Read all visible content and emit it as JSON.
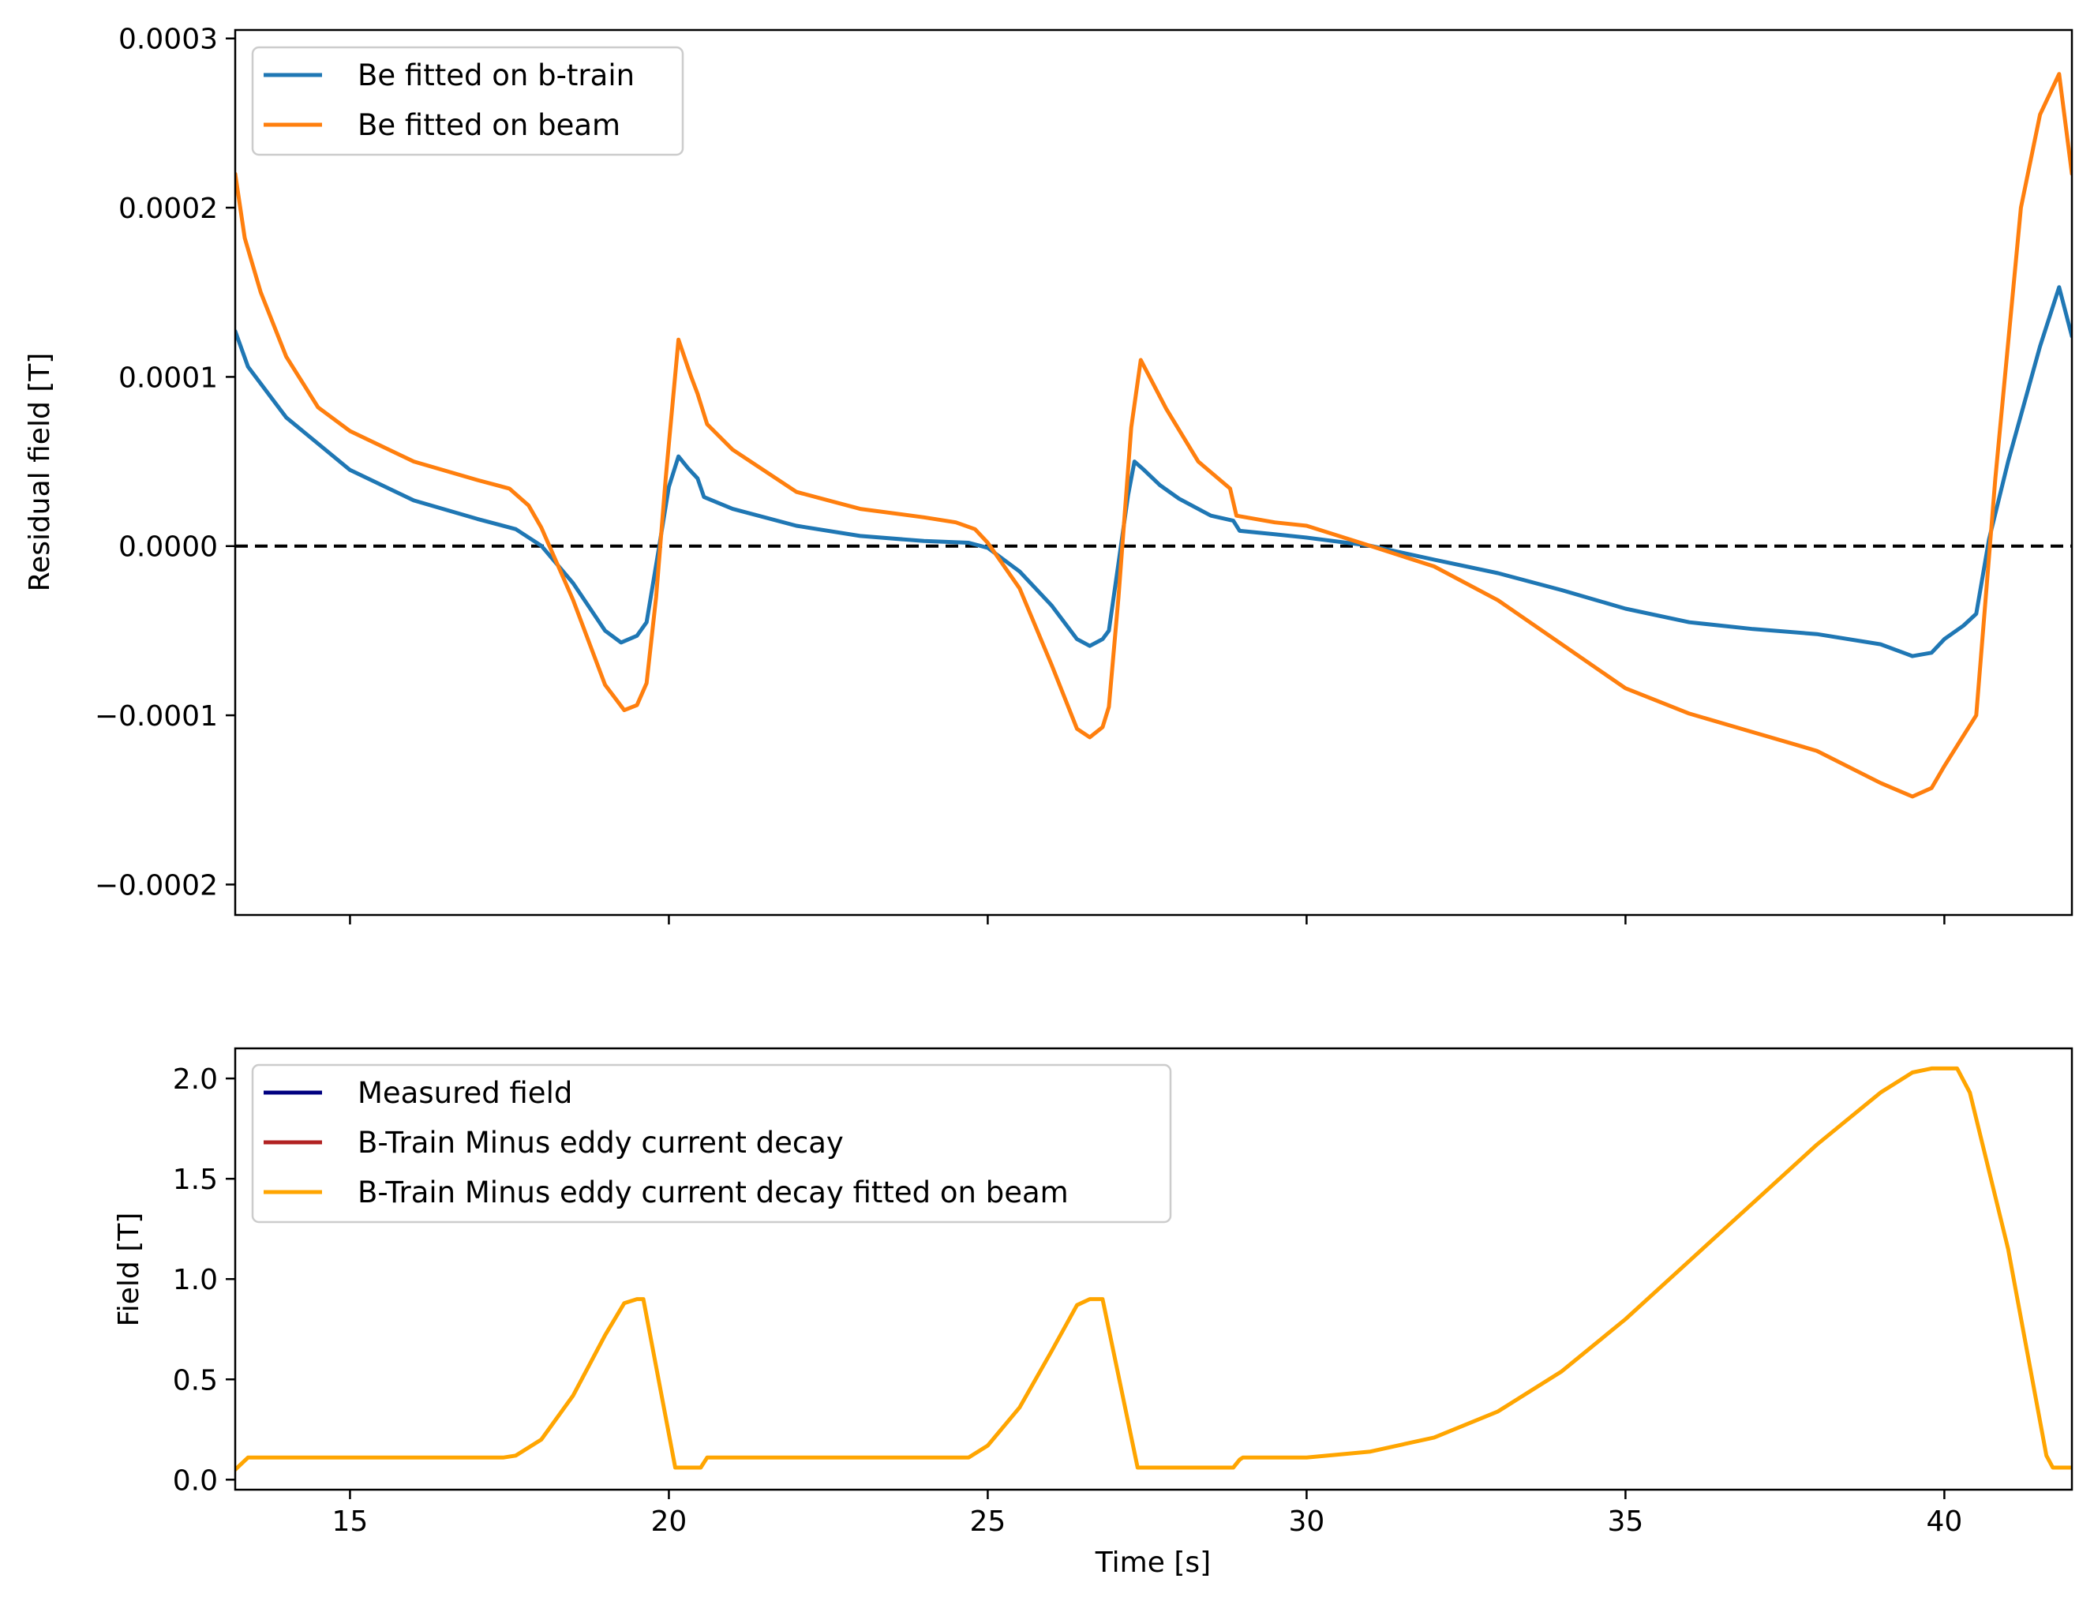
{
  "chart_data": [
    {
      "type": "line",
      "title": "",
      "xlabel": "",
      "ylabel": "Residual field [T]",
      "xlim": [
        13.2,
        42.0
      ],
      "ylim": [
        -0.000218,
        0.000305
      ],
      "xticks": [
        15,
        20,
        25,
        30,
        35,
        40
      ],
      "xtick_labels": [
        "15",
        "20",
        "25",
        "30",
        "35",
        "40"
      ],
      "yticks": [
        -0.0002,
        -0.0001,
        0.0,
        0.0001,
        0.0002,
        0.0003
      ],
      "ytick_labels": [
        "−0.0002",
        "−0.0001",
        "0.0000",
        "0.0001",
        "0.0002",
        "0.0003"
      ],
      "grid": false,
      "legend_position": "top-left",
      "reference_line": {
        "y": 0.0,
        "style": "dashed",
        "color": "#000000"
      },
      "series": [
        {
          "name": "Be fitted on b-train",
          "color": "#1f77b4",
          "x": [
            13.2,
            13.4,
            14.0,
            15.0,
            16.0,
            17.0,
            17.6,
            18.0,
            18.5,
            19.0,
            19.25,
            19.5,
            19.65,
            19.85,
            20.0,
            20.15,
            20.3,
            20.45,
            20.55,
            21.0,
            22.0,
            23.0,
            24.0,
            24.7,
            25.0,
            25.5,
            26.0,
            26.4,
            26.6,
            26.8,
            26.9,
            27.05,
            27.2,
            27.3,
            27.45,
            27.7,
            28.0,
            28.5,
            28.85,
            28.95,
            29.5,
            30.0,
            31.0,
            32.0,
            33.0,
            34.0,
            35.0,
            36.0,
            37.0,
            38.0,
            39.0,
            39.5,
            39.8,
            40.0,
            40.3,
            40.5,
            40.7,
            41.0,
            41.5,
            41.8,
            42.0
          ],
          "y": [
            0.000127,
            0.000106,
            7.6e-05,
            4.5e-05,
            2.7e-05,
            1.6e-05,
            1e-05,
            2e-07,
            -2.2e-05,
            -5e-05,
            -5.7e-05,
            -5.3e-05,
            -4.5e-05,
            2e-07,
            3.5e-05,
            5.3e-05,
            4.6e-05,
            4e-05,
            2.9e-05,
            2.2e-05,
            1.2e-05,
            6e-06,
            3e-06,
            2e-06,
            -1e-06,
            -1.5e-05,
            -3.5e-05,
            -5.5e-05,
            -5.9e-05,
            -5.5e-05,
            -5e-05,
            -1e-05,
            3e-05,
            5e-05,
            4.5e-05,
            3.6e-05,
            2.8e-05,
            1.8e-05,
            1.5e-05,
            9e-06,
            7e-06,
            5e-06,
            2e-07,
            -8e-06,
            -1.6e-05,
            -2.6e-05,
            -3.7e-05,
            -4.5e-05,
            -4.9e-05,
            -5.2e-05,
            -5.8e-05,
            -6.5e-05,
            -6.3e-05,
            -5.5e-05,
            -4.7e-05,
            -4e-05,
            4e-06,
            5e-05,
            0.000118,
            0.000153,
            0.000124
          ]
        },
        {
          "name": "Be fitted on beam",
          "color": "#ff7f0e",
          "x": [
            13.2,
            13.35,
            13.6,
            14.0,
            14.5,
            15.0,
            16.0,
            17.0,
            17.5,
            17.8,
            18.0,
            18.5,
            19.0,
            19.3,
            19.5,
            19.65,
            19.8,
            19.95,
            20.15,
            20.35,
            20.45,
            20.6,
            21.0,
            22.0,
            23.0,
            24.0,
            24.5,
            24.8,
            25.0,
            25.5,
            26.0,
            26.4,
            26.6,
            26.8,
            26.9,
            27.05,
            27.25,
            27.4,
            27.8,
            28.3,
            28.8,
            28.9,
            29.5,
            30.0,
            31.0,
            32.0,
            33.0,
            34.0,
            35.0,
            36.0,
            37.0,
            38.0,
            39.0,
            39.5,
            39.8,
            40.0,
            40.3,
            40.5,
            40.8,
            41.2,
            41.5,
            41.8,
            42.0
          ],
          "y": [
            0.00022,
            0.000182,
            0.00015,
            0.000112,
            8.2e-05,
            6.8e-05,
            5e-05,
            3.9e-05,
            3.4e-05,
            2.4e-05,
            1.1e-05,
            -3.2e-05,
            -8.2e-05,
            -9.7e-05,
            -9.4e-05,
            -8.1e-05,
            -3e-05,
            4e-05,
            0.000122,
            0.0001,
            9e-05,
            7.2e-05,
            5.7e-05,
            3.2e-05,
            2.2e-05,
            1.7e-05,
            1.4e-05,
            1e-05,
            2e-06,
            -2.5e-05,
            -7e-05,
            -0.000108,
            -0.000113,
            -0.000107,
            -9.5e-05,
            -3e-05,
            7e-05,
            0.00011,
            8.1e-05,
            5e-05,
            3.4e-05,
            1.8e-05,
            1.4e-05,
            1.2e-05,
            1e-07,
            -1.2e-05,
            -3.2e-05,
            -5.8e-05,
            -8.4e-05,
            -9.9e-05,
            -0.00011,
            -0.000121,
            -0.00014,
            -0.000148,
            -0.000143,
            -0.00013,
            -0.000112,
            -0.0001,
            4e-05,
            0.0002,
            0.000255,
            0.000279,
            0.00022
          ]
        }
      ]
    },
    {
      "type": "line",
      "title": "",
      "xlabel": "Time [s]",
      "ylabel": "Field [T]",
      "xlim": [
        13.2,
        42.0
      ],
      "ylim": [
        -0.05,
        2.15
      ],
      "xticks": [
        15,
        20,
        25,
        30,
        35,
        40
      ],
      "xtick_labels": [
        "15",
        "20",
        "25",
        "30",
        "35",
        "40"
      ],
      "yticks": [
        0.0,
        0.5,
        1.0,
        1.5,
        2.0
      ],
      "ytick_labels": [
        "0.0",
        "0.5",
        "1.0",
        "1.5",
        "2.0"
      ],
      "grid": false,
      "legend_position": "top-left",
      "series": [
        {
          "name": "Measured field",
          "color": "#000080"
        },
        {
          "name": "B-Train Minus eddy current decay",
          "color": "#b22222"
        },
        {
          "name": "B-Train Minus eddy current decay fitted on beam",
          "color": "#ffa500",
          "x": [
            13.2,
            13.4,
            13.6,
            17.4,
            17.6,
            18.0,
            18.5,
            19.0,
            19.3,
            19.5,
            19.6,
            20.1,
            20.5,
            20.6,
            24.7,
            25.0,
            25.5,
            26.0,
            26.4,
            26.6,
            26.8,
            27.35,
            28.85,
            28.95,
            29.0,
            30.0,
            31.0,
            32.0,
            33.0,
            34.0,
            35.0,
            36.0,
            37.0,
            38.0,
            39.0,
            39.5,
            39.8,
            40.2,
            40.4,
            41.0,
            41.6,
            41.7,
            42.0
          ],
          "y": [
            0.05,
            0.11,
            0.11,
            0.11,
            0.12,
            0.2,
            0.42,
            0.72,
            0.88,
            0.9,
            0.9,
            0.06,
            0.06,
            0.11,
            0.11,
            0.17,
            0.36,
            0.64,
            0.87,
            0.9,
            0.9,
            0.06,
            0.06,
            0.1,
            0.11,
            0.11,
            0.14,
            0.21,
            0.34,
            0.54,
            0.8,
            1.09,
            1.38,
            1.67,
            1.93,
            2.03,
            2.05,
            2.05,
            1.93,
            1.15,
            0.12,
            0.06,
            0.06
          ]
        }
      ]
    }
  ]
}
